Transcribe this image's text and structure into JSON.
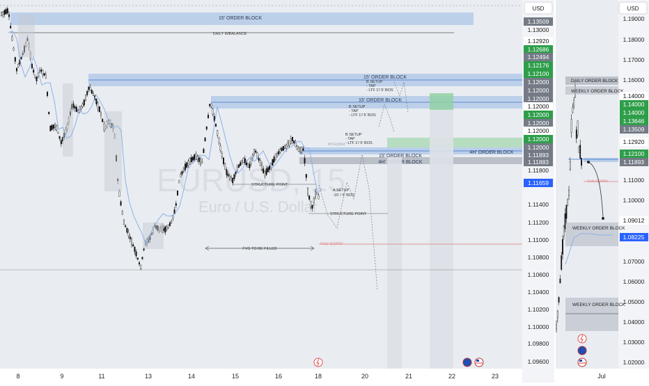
{
  "chart_data": [
    {
      "type": "candlestick",
      "watermark": {
        "symbol": "EURUSD, 15",
        "name": "Euro / U.S. Dollar"
      },
      "currency_button": "USD",
      "x_tick_labels": [
        "8",
        "9",
        "11",
        "13",
        "14",
        "15",
        "16",
        "18",
        "20",
        "21",
        "22",
        "23"
      ],
      "y_tick_labels": [
        "1.13509",
        "1.13000",
        "1.12920",
        "1.12686",
        "1.12494",
        "1.12176",
        "1.12100",
        "1.12000",
        "1.12000",
        "1.12000",
        "1.12000",
        "1.12000",
        "1.12000",
        "1.12000",
        "1.11893",
        "1.11883",
        "1.11800",
        "1.11659",
        "1.11400",
        "1.11200",
        "1.11000",
        "1.10800",
        "1.10600",
        "1.10400",
        "1.10200",
        "1.10000",
        "1.09800",
        "1.09600"
      ],
      "price_badges": [
        {
          "text": "1.13509",
          "kind": "grey"
        },
        {
          "text": "1.12920",
          "kind": "white"
        },
        {
          "text": "1.12686",
          "kind": "green"
        },
        {
          "text": "1.12494",
          "kind": "grey"
        },
        {
          "text": "1.12176",
          "kind": "green"
        },
        {
          "text": "1.12100",
          "kind": "green"
        },
        {
          "text": "1.12000",
          "kind": "grey"
        },
        {
          "text": "1.12000",
          "kind": "grey"
        },
        {
          "text": "1.12000",
          "kind": "grey"
        },
        {
          "text": "1.12000",
          "kind": "white"
        },
        {
          "text": "1.12000",
          "kind": "green"
        },
        {
          "text": "1.12000",
          "kind": "grey"
        },
        {
          "text": "1.12000",
          "kind": "white"
        },
        {
          "text": "1.12000",
          "kind": "green"
        },
        {
          "text": "1.12000",
          "kind": "grey"
        },
        {
          "text": "1.11893",
          "kind": "grey"
        },
        {
          "text": "1.11883",
          "kind": "grey"
        },
        {
          "text": "1.11659",
          "kind": "blue"
        }
      ],
      "annotations": {
        "ob_top": "15' ORDER BLOCK",
        "daily_imbalance": "DAILY IMBALANCE",
        "ob_mid": "15' ORDER BLOCK",
        "ob_mid2": "15' ORDER BLOCK",
        "ob_low": "15' ORDER BLOCK",
        "ob_4h_a": "4H' ORDER BLOCK",
        "ob_4h_b": "4H' ORDER BLOCK",
        "b_setup_1": [
          "B SETUP",
          "- TAP",
          "- LTF 1'/ 5' BOS"
        ],
        "b_setup_2": [
          "B SETUP",
          "- TAP",
          "- LTF 1'/ 5' BOS"
        ],
        "b_setup_3": [
          "B SETUP",
          "- TAP",
          "- LTF 1'/ 5' BOS"
        ],
        "a_setup": [
          "A SETUP",
          "-15' / 5' BOS"
        ],
        "structure_1": "STRUCTURE POINT",
        "structure_2": "STRUCTURE POINT",
        "fvg_fill": "FVG TO BE  FILLED",
        "faint_1": "Daily EQ/Mid",
        "faint_2": "4H EQ/Mid"
      }
    },
    {
      "type": "candlestick",
      "currency_button": "USD",
      "x_tick_labels": [
        "Jul"
      ],
      "y_tick_labels": [
        "1.19000",
        "1.18000",
        "1.17000",
        "1.16000",
        "1.14000",
        "1.14000",
        "1.13646",
        "1.13509",
        "1.12920",
        "1.12100",
        "1.11893",
        "1.11000",
        "1.10000",
        "1.09012",
        "1.08225",
        "1.07000",
        "1.06000",
        "1.05000",
        "1.04000",
        "1.03000",
        "1.02000"
      ],
      "price_badges": [
        {
          "text": "1.14000",
          "kind": "white"
        },
        {
          "text": "1.14000",
          "kind": "green"
        },
        {
          "text": "1.14000",
          "kind": "green"
        },
        {
          "text": "1.13646",
          "kind": "green"
        },
        {
          "text": "1.13509",
          "kind": "grey"
        },
        {
          "text": "1.12920",
          "kind": "white"
        },
        {
          "text": "1.12100",
          "kind": "green"
        },
        {
          "text": "1.11893",
          "kind": "grey"
        },
        {
          "text": "1.09012",
          "kind": "white"
        },
        {
          "text": "1.08225",
          "kind": "blue"
        }
      ],
      "annotations": {
        "daily_ob": "DAILY ORDER BLOCK",
        "weekly_ob_1": "WEEKLY ORDER BLOCK",
        "weekly_ob_2": "WEEKLY ORDER BLOCK",
        "weekly_ob_3": "WEEKLY ORDER BLOCK",
        "faint": "Daily EQ/Mid"
      }
    }
  ],
  "colors": {
    "bg": "#e9ecf1",
    "ob_blue": "#7aa6e0",
    "grey_zone": "#9aa0aa",
    "green": "#2e9e4a",
    "blue_badge": "#2962ff",
    "red_line": "#e07b7b"
  }
}
